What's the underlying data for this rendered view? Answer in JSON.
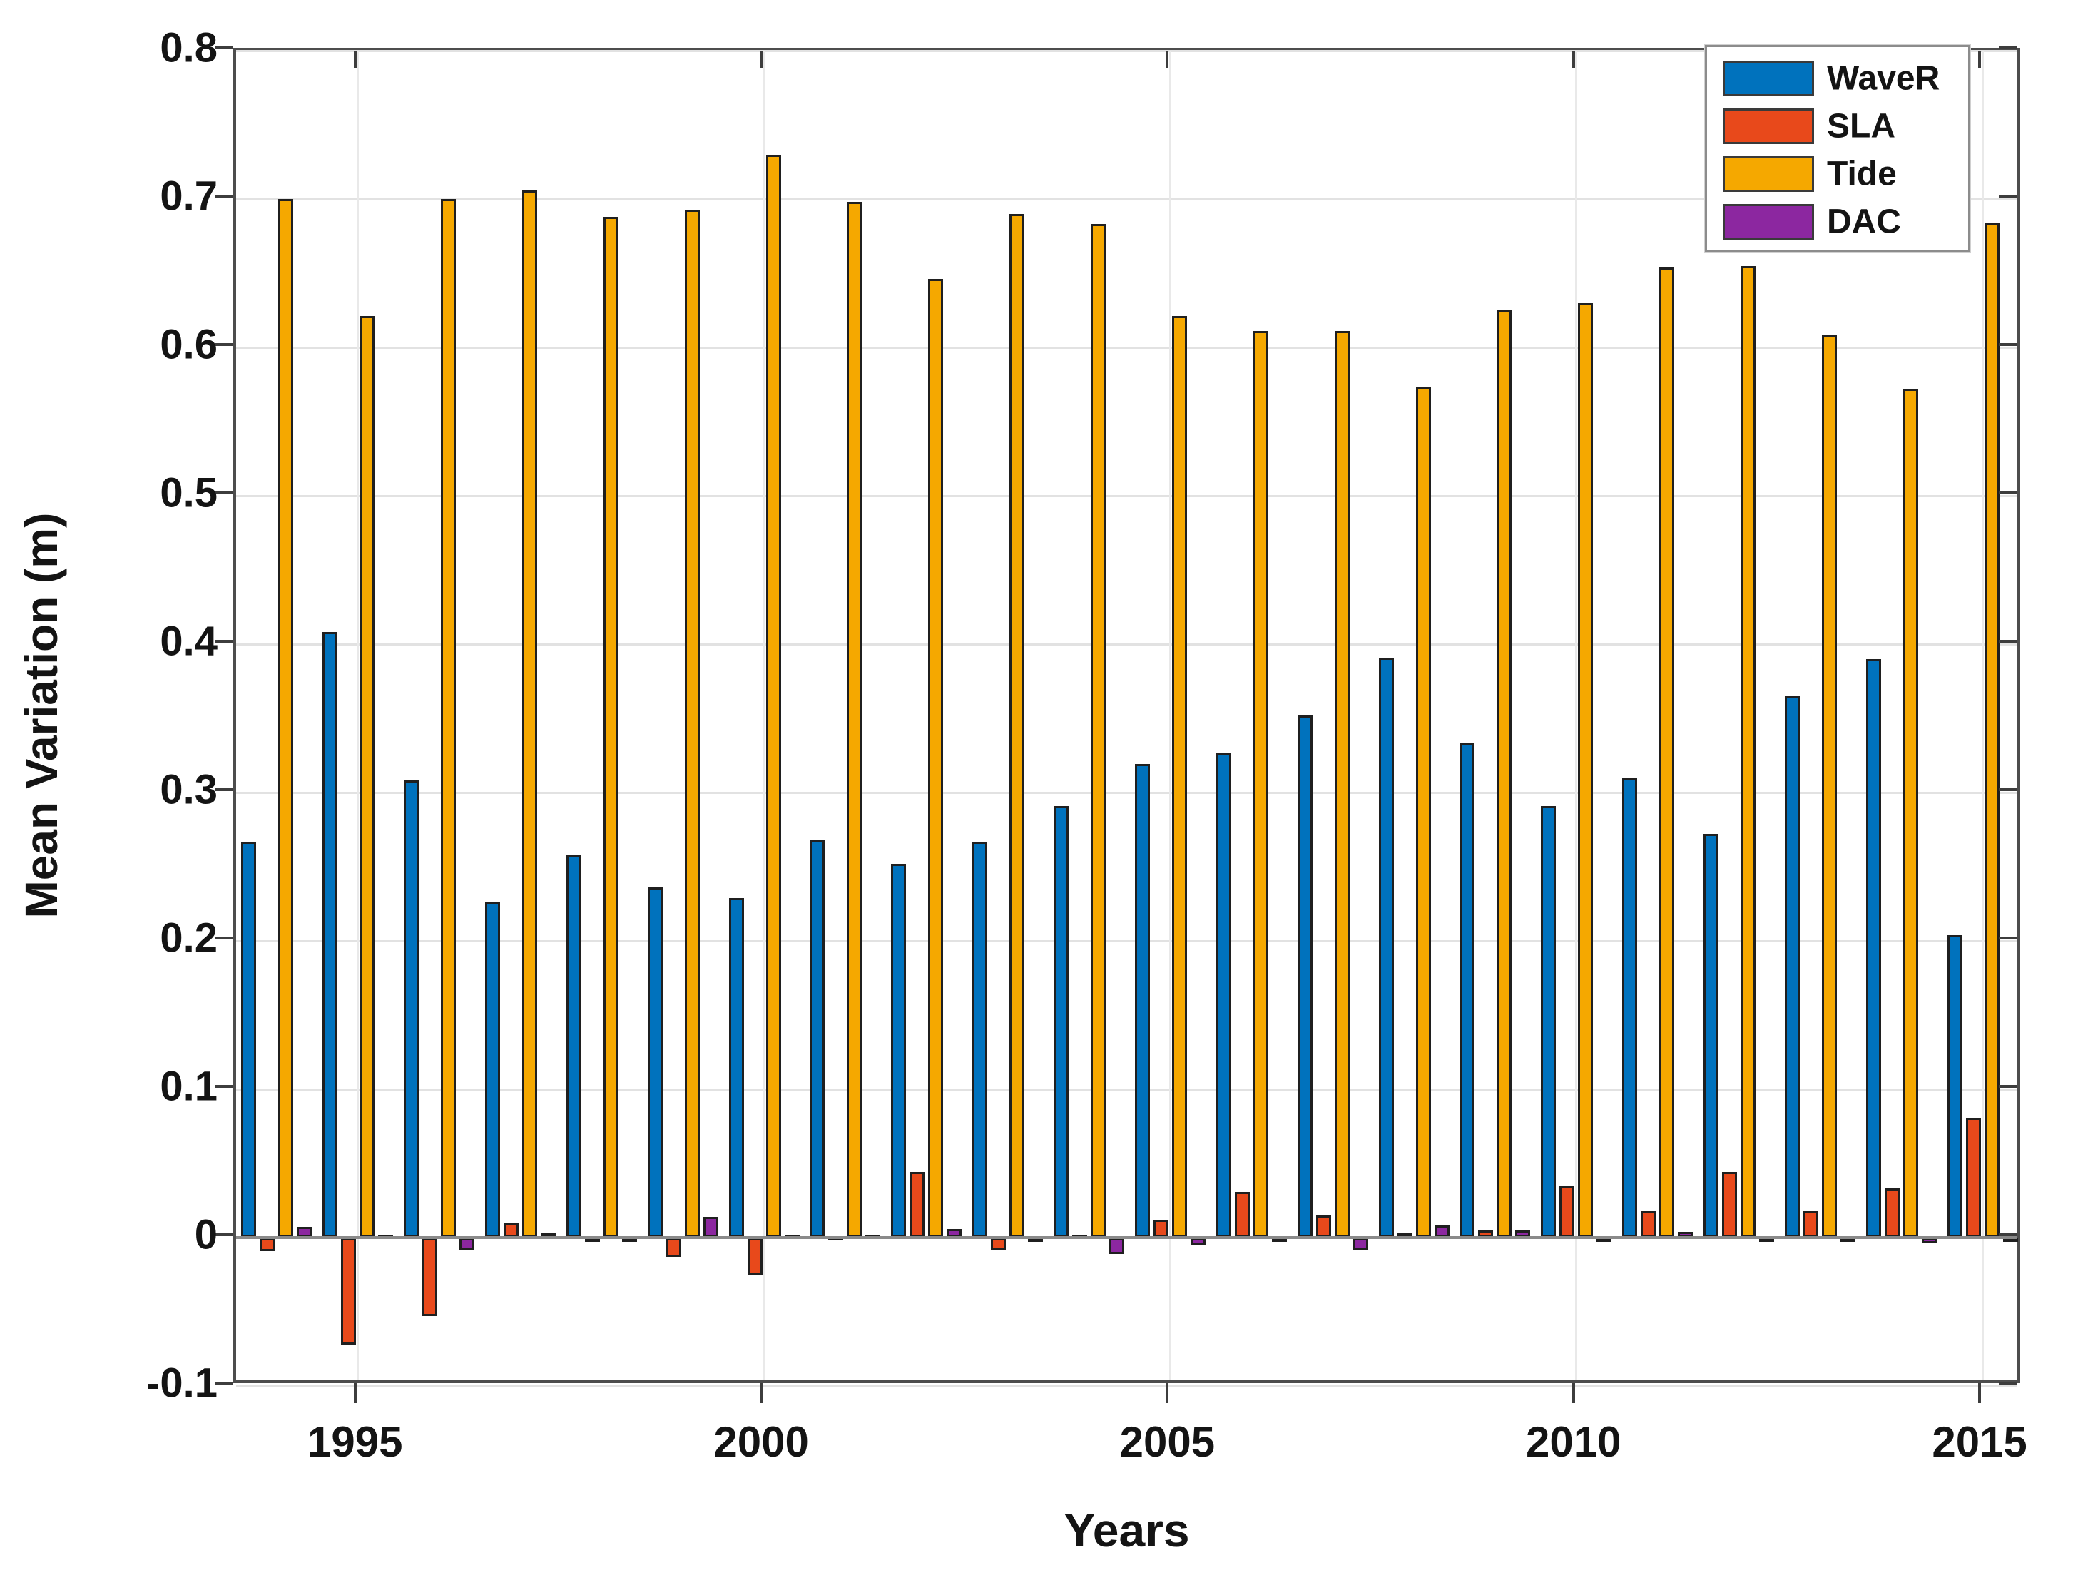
{
  "chart_data": {
    "type": "bar",
    "title": "",
    "xlabel": "Years",
    "ylabel": "Mean Variation (m)",
    "ylim": [
      -0.1,
      0.8
    ],
    "grid": true,
    "legend_position": "top-right",
    "categories": [
      1994,
      1995,
      1996,
      1997,
      1998,
      1999,
      2000,
      2001,
      2002,
      2003,
      2004,
      2005,
      2006,
      2007,
      2008,
      2009,
      2010,
      2011,
      2012,
      2013,
      2014,
      2015
    ],
    "xtick_labels": [
      "1995",
      "2000",
      "2005",
      "2010",
      "2015"
    ],
    "xtick_years": [
      1995,
      2000,
      2005,
      2010,
      2015
    ],
    "ytick_values": [
      0.8,
      0.7,
      0.6,
      0.5,
      0.4,
      0.3,
      0.2,
      0.1,
      0,
      -0.1
    ],
    "ytick_labels": [
      "0.8",
      "0.7",
      "0.6",
      "0.5",
      "0.4",
      "0.3",
      "0.2",
      "0.1",
      "0",
      "-0.1"
    ],
    "series": [
      {
        "name": "WaveR",
        "color": "#0072BD",
        "values": [
          0.267,
          0.408,
          0.308,
          0.226,
          0.258,
          0.236,
          0.229,
          0.268,
          0.252,
          0.267,
          0.291,
          0.319,
          0.327,
          0.352,
          0.391,
          0.333,
          0.291,
          0.31,
          0.272,
          0.365,
          0.39,
          0.204
        ]
      },
      {
        "name": "SLA",
        "color": "#E8491B",
        "values": [
          -0.009,
          -0.072,
          -0.053,
          0.01,
          -0.003,
          -0.013,
          -0.025,
          0.001,
          0.044,
          -0.008,
          0.002,
          0.012,
          0.031,
          0.015,
          0.003,
          0.005,
          0.035,
          0.018,
          0.044,
          0.018,
          0.033,
          0.081
        ]
      },
      {
        "name": "Tide",
        "color": "#F5A800",
        "values": [
          0.7,
          0.621,
          0.7,
          0.706,
          0.688,
          0.693,
          0.73,
          0.698,
          0.646,
          0.69,
          0.683,
          0.621,
          0.611,
          0.611,
          0.573,
          0.625,
          0.63,
          0.654,
          0.655,
          0.608,
          0.572,
          0.684
        ]
      },
      {
        "name": "DAC",
        "color": "#8C27A0",
        "values": [
          0.007,
          0.002,
          -0.008,
          0.003,
          -0.003,
          0.014,
          0.002,
          0.002,
          0.006,
          -0.002,
          -0.011,
          -0.005,
          -0.002,
          -0.008,
          0.008,
          0.005,
          -0.002,
          0.004,
          -0.003,
          -0.003,
          -0.004,
          -0.002
        ]
      }
    ],
    "legend_entries": [
      "WaveR",
      "SLA",
      "Tide",
      "DAC"
    ]
  }
}
